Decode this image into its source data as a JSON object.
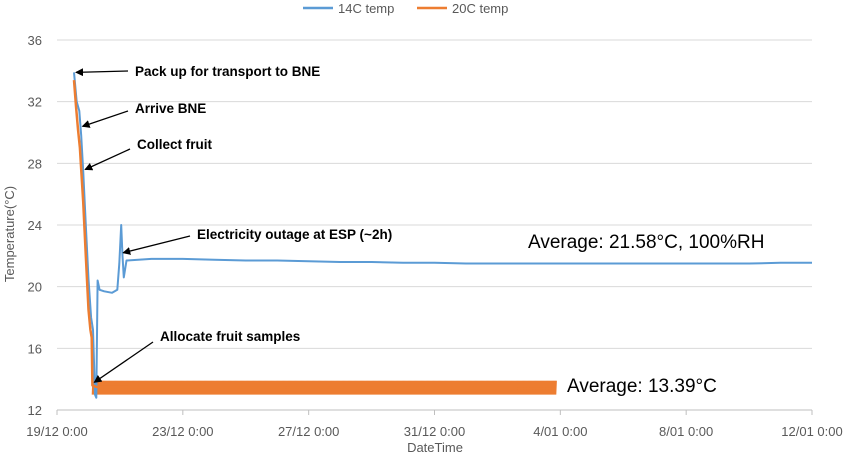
{
  "chart_data": {
    "type": "line",
    "xlabel": "DateTime",
    "ylabel": "Temperature(°C)",
    "ylim": [
      12,
      36
    ],
    "yticks": [
      12,
      16,
      20,
      24,
      28,
      32,
      36
    ],
    "xlim": [
      "2014-12-19 00:00",
      "2015-01-12 00:00"
    ],
    "xticks": [
      {
        "date": "2014-12-19 00:00",
        "label": "19/12 0:00"
      },
      {
        "date": "2014-12-23 00:00",
        "label": "23/12 0:00"
      },
      {
        "date": "2014-12-27 00:00",
        "label": "27/12 0:00"
      },
      {
        "date": "2014-12-31 00:00",
        "label": "31/12 0:00"
      },
      {
        "date": "2015-01-04 00:00",
        "label": "4/01 0:00"
      },
      {
        "date": "2015-01-08 00:00",
        "label": "8/01 0:00"
      },
      {
        "date": "2015-01-12 00:00",
        "label": "12/01 0:00"
      }
    ],
    "grid": "horizontal",
    "legend_position": "top",
    "series": [
      {
        "name": "14C temp",
        "color": "#5b9bd5",
        "points": [
          [
            "2014-12-19 13:00",
            33.9
          ],
          [
            "2014-12-19 15:00",
            32.0
          ],
          [
            "2014-12-19 17:00",
            31.4
          ],
          [
            "2014-12-19 18:30",
            29.8
          ],
          [
            "2014-12-19 20:00",
            27.5
          ],
          [
            "2014-12-19 22:00",
            24.0
          ],
          [
            "2014-12-20 00:00",
            20.5
          ],
          [
            "2014-12-20 02:00",
            18.0
          ],
          [
            "2014-12-20 03:30",
            17.2
          ],
          [
            "2014-12-20 05:00",
            13.0
          ],
          [
            "2014-12-20 06:00",
            12.8
          ],
          [
            "2014-12-20 07:00",
            20.4
          ],
          [
            "2014-12-20 08:30",
            19.8
          ],
          [
            "2014-12-20 12:00",
            19.7
          ],
          [
            "2014-12-20 18:00",
            19.6
          ],
          [
            "2014-12-20 22:00",
            19.8
          ],
          [
            "2014-12-20 23:30",
            21.5
          ],
          [
            "2014-12-21 01:00",
            24.0
          ],
          [
            "2014-12-21 02:00",
            22.0
          ],
          [
            "2014-12-21 03:00",
            20.6
          ],
          [
            "2014-12-21 05:00",
            21.7
          ],
          [
            "2014-12-22 00:00",
            21.8
          ],
          [
            "2014-12-23 00:00",
            21.8
          ],
          [
            "2014-12-24 00:00",
            21.75
          ],
          [
            "2014-12-25 00:00",
            21.7
          ],
          [
            "2014-12-26 00:00",
            21.7
          ],
          [
            "2014-12-27 00:00",
            21.65
          ],
          [
            "2014-12-28 00:00",
            21.6
          ],
          [
            "2014-12-29 00:00",
            21.6
          ],
          [
            "2014-12-30 00:00",
            21.55
          ],
          [
            "2014-12-31 00:00",
            21.55
          ],
          [
            "2015-01-01 00:00",
            21.5
          ],
          [
            "2015-01-02 00:00",
            21.5
          ],
          [
            "2015-01-03 00:00",
            21.5
          ],
          [
            "2015-01-04 00:00",
            21.5
          ],
          [
            "2015-01-05 00:00",
            21.5
          ],
          [
            "2015-01-06 00:00",
            21.5
          ],
          [
            "2015-01-07 00:00",
            21.5
          ],
          [
            "2015-01-08 00:00",
            21.5
          ],
          [
            "2015-01-09 00:00",
            21.5
          ],
          [
            "2015-01-10 00:00",
            21.5
          ],
          [
            "2015-01-11 00:00",
            21.55
          ],
          [
            "2015-01-12 00:00",
            21.55
          ]
        ]
      },
      {
        "name": "20C temp",
        "color": "#ed7d31",
        "points": [
          [
            "2014-12-19 13:00",
            33.4
          ],
          [
            "2014-12-19 14:30",
            31.7
          ],
          [
            "2014-12-19 16:00",
            30.2
          ],
          [
            "2014-12-19 17:30",
            29.0
          ],
          [
            "2014-12-19 18:30",
            27.6
          ],
          [
            "2014-12-19 20:00",
            25.5
          ],
          [
            "2014-12-19 22:00",
            22.0
          ],
          [
            "2014-12-20 00:00",
            18.5
          ],
          [
            "2014-12-20 01:30",
            17.2
          ],
          [
            "2014-12-20 02:30",
            16.7
          ],
          [
            "2014-12-20 03:00",
            13.6
          ],
          [
            "2014-12-20 06:00",
            13.5
          ],
          [
            "2015-01-03 21:00",
            13.4
          ]
        ],
        "band_from": "2014-12-20 03:00",
        "band_to": "2015-01-03 21:00",
        "band_range": [
          13.0,
          13.9
        ]
      }
    ],
    "annotations": [
      {
        "text": "Pack up for transport to BNE",
        "x": "2014-12-19 13:00",
        "y": 33.9
      },
      {
        "text": "Arrive BNE",
        "x": "2014-12-19 18:00",
        "y": 30.4
      },
      {
        "text": "Collect fruit",
        "x": "2014-12-19 20:00",
        "y": 27.6
      },
      {
        "text": "Electricity outage at ESP (~2h)",
        "x": "2014-12-21 01:00",
        "y": 22.2
      },
      {
        "text": "Allocate fruit samples",
        "x": "2014-12-20 03:00",
        "y": 13.8
      }
    ],
    "averages": [
      {
        "text": "Average: 21.58°C, 100%RH"
      },
      {
        "text": "Average: 13.39°C"
      }
    ]
  }
}
